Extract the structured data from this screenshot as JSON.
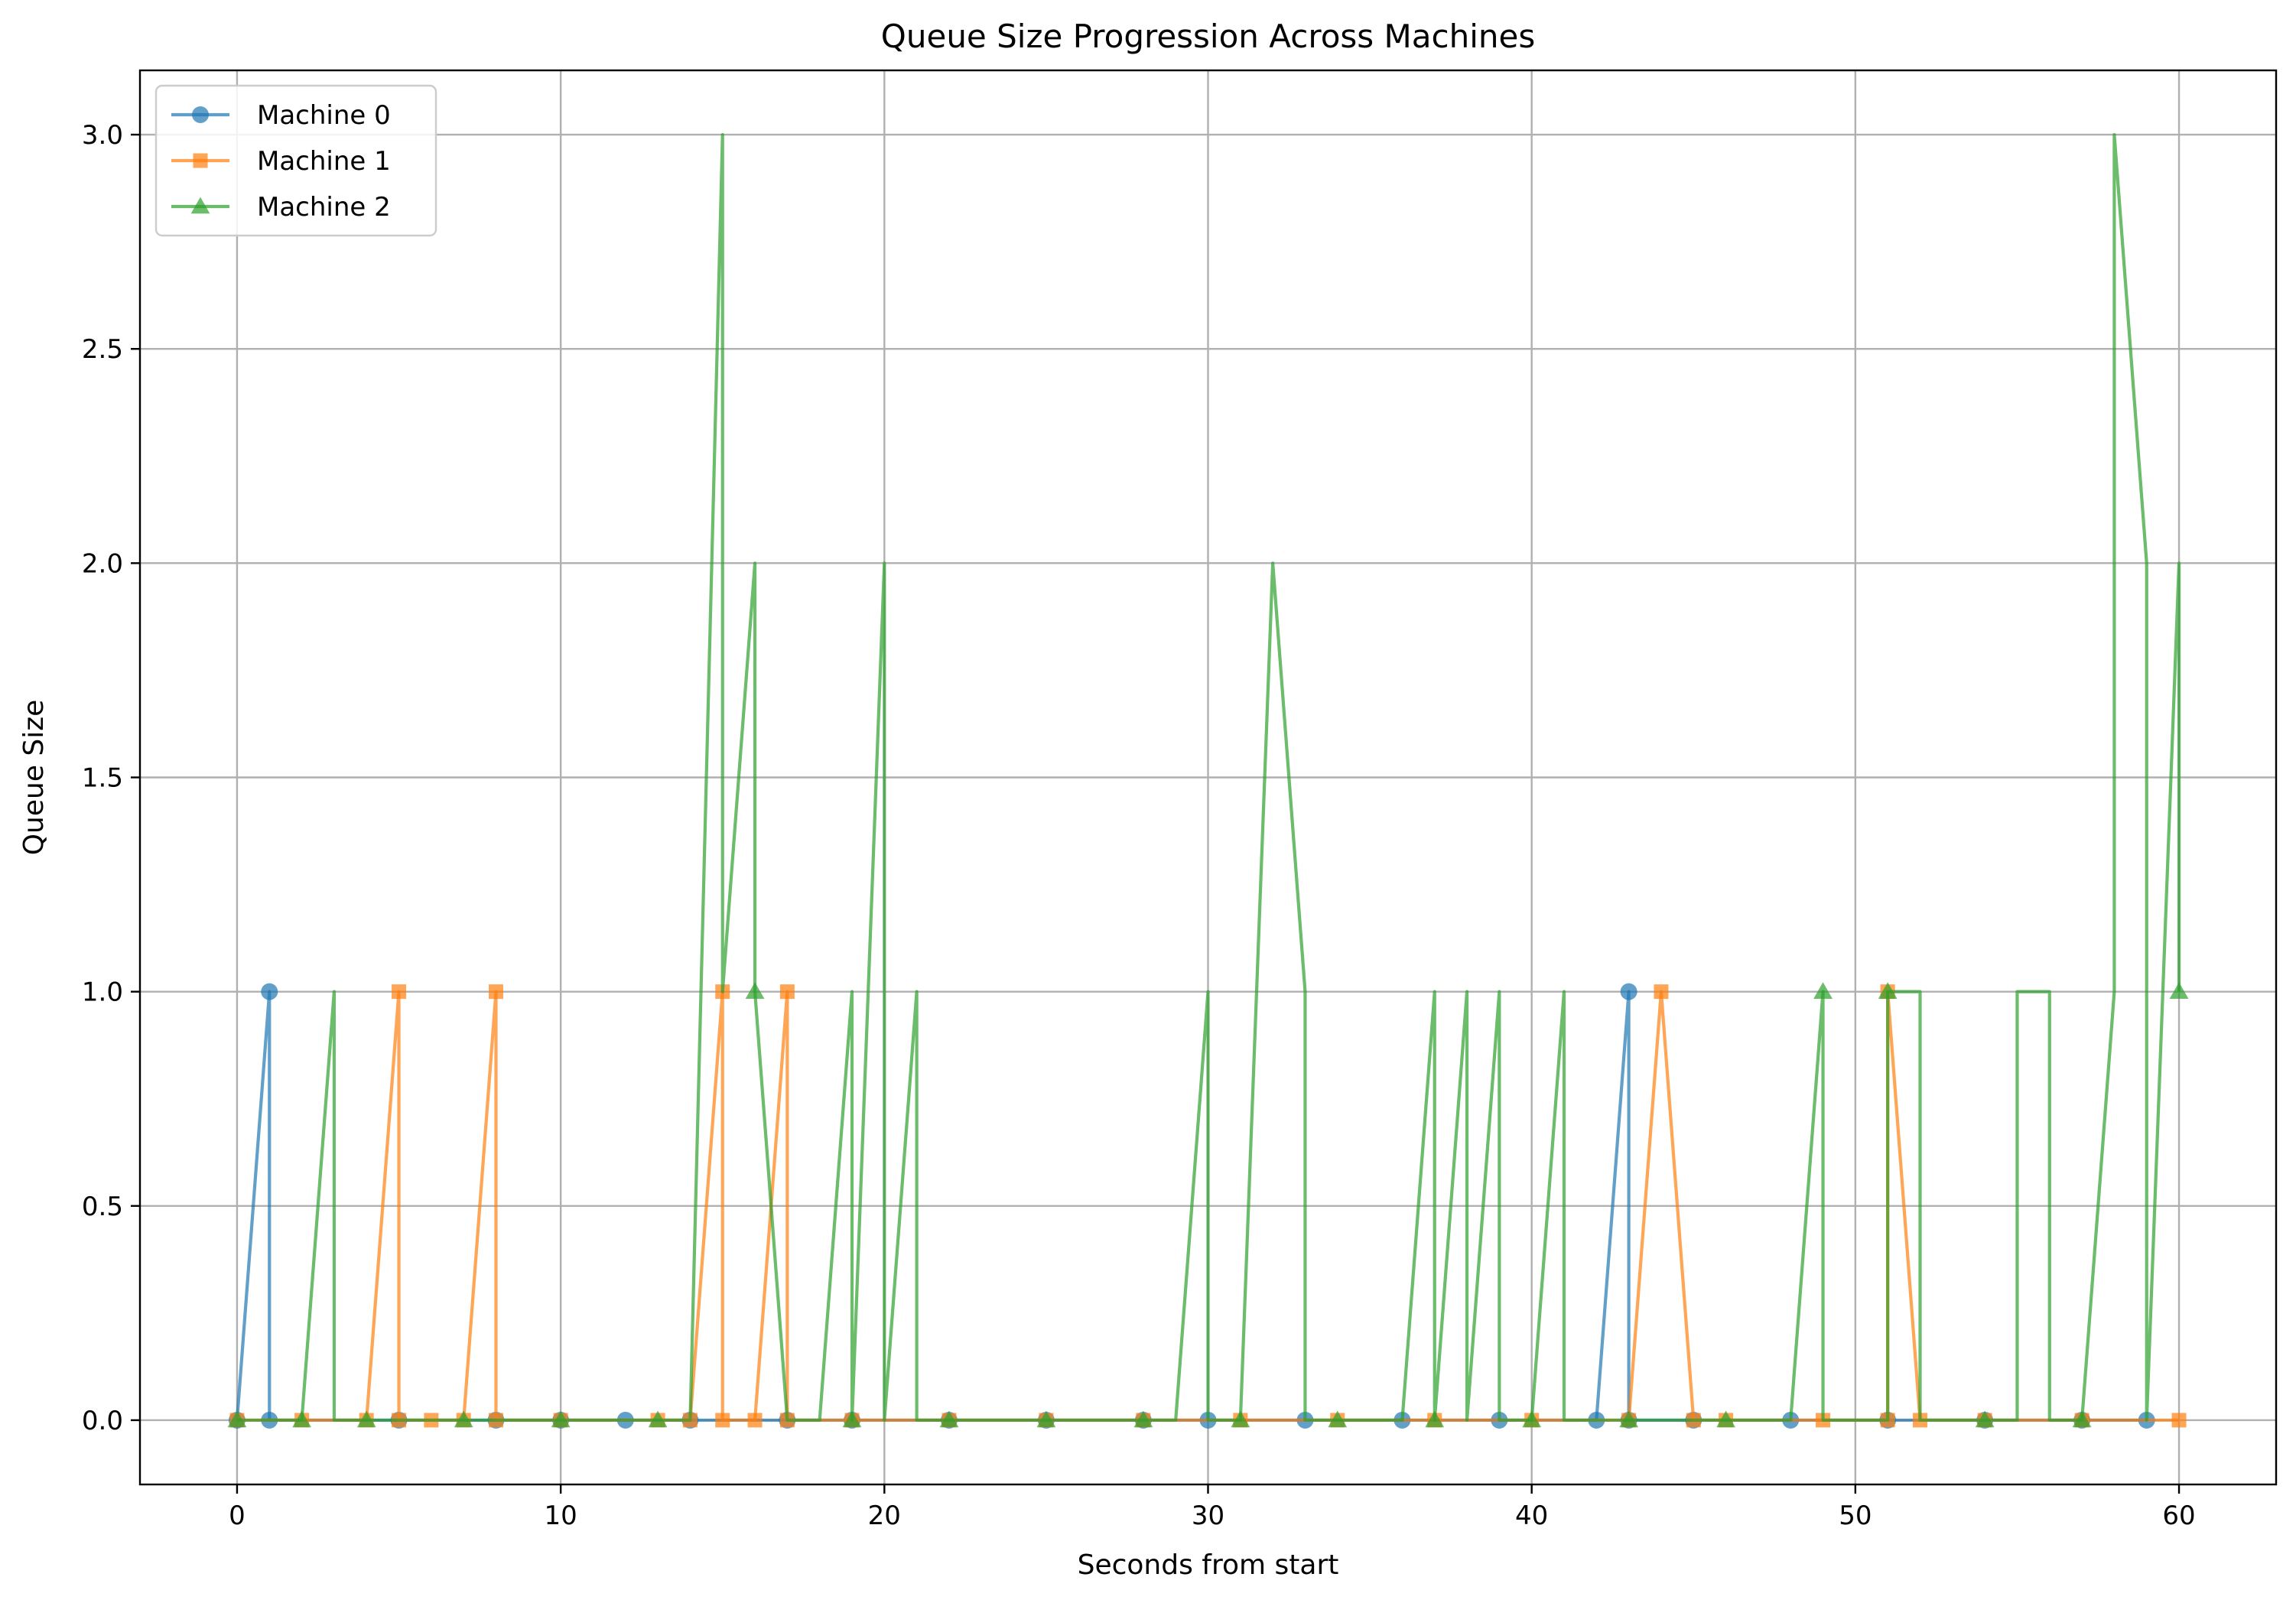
{
  "chart_data": {
    "type": "line",
    "title": "Queue Size Progression Across Machines",
    "xlabel": "Seconds from start",
    "ylabel": "Queue Size",
    "xlim": [
      -3,
      63
    ],
    "ylim": [
      -0.15,
      3.15
    ],
    "xticks": [
      0,
      10,
      20,
      30,
      40,
      50,
      60
    ],
    "xtick_labels": [
      "0",
      "10",
      "20",
      "30",
      "40",
      "50",
      "60"
    ],
    "yticks": [
      0.0,
      0.5,
      1.0,
      1.5,
      2.0,
      2.5,
      3.0
    ],
    "ytick_labels": [
      "0.0",
      "0.5",
      "1.0",
      "1.5",
      "2.0",
      "2.5",
      "3.0"
    ],
    "grid": true,
    "legend_position": "upper left",
    "series": [
      {
        "name": "Machine 0",
        "color": "#1f77b4",
        "marker": "circle",
        "x": [
          0,
          1,
          1,
          5,
          8,
          10,
          12,
          14,
          17,
          19,
          22,
          25,
          28,
          30,
          33,
          36,
          39,
          42,
          43,
          43,
          45,
          48,
          51,
          54,
          57,
          59
        ],
        "y": [
          0,
          1,
          0,
          0,
          0,
          0,
          0,
          0,
          0,
          0,
          0,
          0,
          0,
          0,
          0,
          0,
          0,
          0,
          1,
          0,
          0,
          0,
          0,
          0,
          0,
          0
        ]
      },
      {
        "name": "Machine 1",
        "color": "#ff7f0e",
        "marker": "square",
        "x": [
          0,
          2,
          4,
          5,
          5,
          6,
          7,
          8,
          8,
          10,
          13,
          14,
          15,
          15,
          16,
          17,
          17,
          19,
          22,
          25,
          28,
          31,
          34,
          37,
          40,
          43,
          44,
          45,
          46,
          49,
          51,
          51,
          52,
          54,
          57,
          60
        ],
        "y": [
          0,
          0,
          0,
          1,
          0,
          0,
          0,
          1,
          0,
          0,
          0,
          0,
          1,
          0,
          0,
          1,
          0,
          0,
          0,
          0,
          0,
          0,
          0,
          0,
          0,
          0,
          1,
          0,
          0,
          0,
          0,
          1,
          0,
          0,
          0,
          0
        ]
      },
      {
        "name": "Machine 2",
        "color": "#2ca02c",
        "marker": "triangle",
        "x": [
          0,
          2,
          3,
          3,
          4,
          7,
          10,
          13,
          14,
          15,
          15,
          16,
          16,
          17,
          18,
          19,
          19,
          20,
          20,
          21,
          21,
          22,
          25,
          28,
          29,
          30,
          30,
          31,
          32,
          33,
          33,
          34,
          36,
          37,
          37,
          38,
          38,
          39,
          39,
          40,
          41,
          41,
          43,
          46,
          48,
          49,
          49,
          51,
          51,
          52,
          52,
          54,
          55,
          55,
          56,
          56,
          57,
          58,
          58,
          59,
          59,
          60,
          60
        ],
        "y": [
          0,
          0,
          1,
          0,
          0,
          0,
          0,
          0,
          0,
          3,
          1,
          2,
          1,
          0,
          0,
          1,
          0,
          2,
          0,
          1,
          0,
          0,
          0,
          0,
          0,
          1,
          0,
          0,
          2,
          1,
          0,
          0,
          0,
          1,
          0,
          1,
          0,
          1,
          0,
          0,
          1,
          0,
          0,
          0,
          0,
          1,
          0,
          0,
          1,
          1,
          0,
          0,
          0,
          1,
          1,
          0,
          0,
          1,
          3,
          2,
          0,
          2,
          1
        ],
        "marker_x": [
          0,
          2,
          4,
          7,
          10,
          13,
          16,
          19,
          22,
          25,
          28,
          31,
          34,
          37,
          40,
          43,
          46,
          49,
          51,
          54,
          57,
          60
        ],
        "marker_y": [
          0,
          0,
          0,
          0,
          0,
          0,
          1,
          0,
          0,
          0,
          0,
          0,
          0,
          0,
          0,
          0,
          0,
          1,
          1,
          0,
          0,
          1
        ]
      }
    ]
  }
}
